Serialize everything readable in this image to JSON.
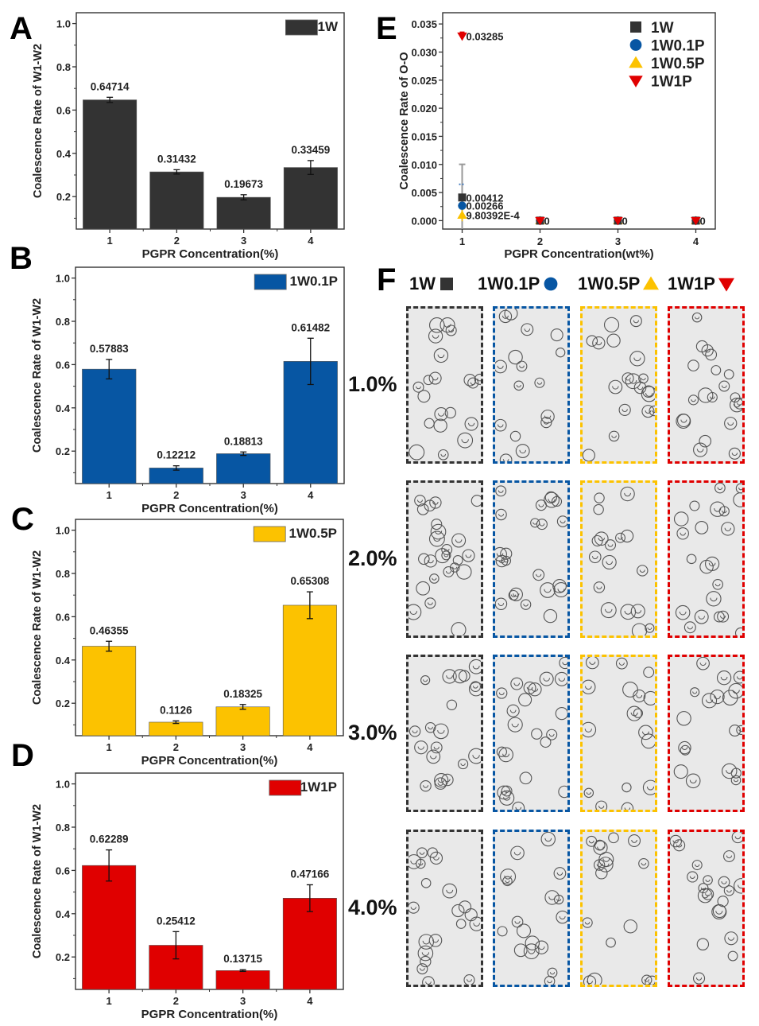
{
  "panels": {
    "A": "A",
    "B": "B",
    "C": "C",
    "D": "D",
    "E": "E",
    "F": "F"
  },
  "colors": {
    "1W": "#333333",
    "1W0.1P": "#0756a3",
    "1W0.5P": "#fcc200",
    "1W1P": "#e00000"
  },
  "chart_data": [
    {
      "id": "A",
      "type": "bar",
      "title": "",
      "xlabel": "PGPR Concentration(%)",
      "ylabel": "Coalescence Rate of W1-W2",
      "categories": [
        "1",
        "2",
        "3",
        "4"
      ],
      "ylim": [
        0.05,
        1.05
      ],
      "yticks": [
        "0.2",
        "0.4",
        "0.6",
        "0.8",
        "1.0"
      ],
      "grid": false,
      "legend": {
        "position": "top-right",
        "entries": [
          "1W"
        ]
      },
      "series": [
        {
          "name": "1W",
          "color": "#333333",
          "values": [
            0.64714,
            0.31432,
            0.19673,
            0.33459
          ],
          "errors": [
            0.012,
            0.01,
            0.012,
            0.032
          ],
          "labels": [
            "0.64714",
            "0.31432",
            "0.19673",
            "0.33459"
          ]
        }
      ]
    },
    {
      "id": "B",
      "type": "bar",
      "title": "",
      "xlabel": "PGPR Concentration(%)",
      "ylabel": "Coalescence Rate of W1-W2",
      "categories": [
        "1",
        "2",
        "3",
        "4"
      ],
      "ylim": [
        0.05,
        1.05
      ],
      "yticks": [
        "0.2",
        "0.4",
        "0.6",
        "0.8",
        "1.0"
      ],
      "grid": false,
      "legend": {
        "position": "top-right",
        "entries": [
          "1W0.1P"
        ]
      },
      "series": [
        {
          "name": "1W0.1P",
          "color": "#0756a3",
          "values": [
            0.57883,
            0.12212,
            0.18813,
            0.61482
          ],
          "errors": [
            0.045,
            0.01,
            0.008,
            0.107
          ],
          "labels": [
            "0.57883",
            "0.12212",
            "0.18813",
            "0.61482"
          ]
        }
      ]
    },
    {
      "id": "C",
      "type": "bar",
      "title": "",
      "xlabel": "PGPR Concentration(%)",
      "ylabel": "Coalescence Rate of W1-W2",
      "categories": [
        "1",
        "2",
        "3",
        "4"
      ],
      "ylim": [
        0.05,
        1.05
      ],
      "yticks": [
        "0.2",
        "0.4",
        "0.6",
        "0.8",
        "1.0"
      ],
      "grid": false,
      "legend": {
        "position": "top-right",
        "entries": [
          "1W0.5P"
        ]
      },
      "series": [
        {
          "name": "1W0.5P",
          "color": "#fcc200",
          "values": [
            0.46355,
            0.1126,
            0.18325,
            0.65308
          ],
          "errors": [
            0.023,
            0.006,
            0.011,
            0.062
          ],
          "labels": [
            "0.46355",
            "0.1126",
            "0.18325",
            "0.65308"
          ]
        }
      ]
    },
    {
      "id": "D",
      "type": "bar",
      "title": "",
      "xlabel": "PGPR Concentration(%)",
      "ylabel": "Coalescence Rate of W1-W2",
      "categories": [
        "1",
        "2",
        "3",
        "4"
      ],
      "ylim": [
        0.05,
        1.05
      ],
      "yticks": [
        "0.2",
        "0.4",
        "0.6",
        "0.8",
        "1.0"
      ],
      "grid": false,
      "legend": {
        "position": "top-right",
        "entries": [
          "1W1P"
        ]
      },
      "series": [
        {
          "name": "1W1P",
          "color": "#e00000",
          "values": [
            0.62289,
            0.25412,
            0.13715,
            0.47166
          ],
          "errors": [
            0.072,
            0.063,
            0.004,
            0.062
          ],
          "labels": [
            "0.62289",
            "0.25412",
            "0.13715",
            "0.47166"
          ]
        }
      ]
    },
    {
      "id": "E",
      "type": "scatter",
      "title": "",
      "xlabel": "PGPR Concentration(wt%)",
      "ylabel": "Coalescence Rate of O-O",
      "x": [
        1,
        2,
        3,
        4
      ],
      "xticks": [
        "1",
        "2",
        "3",
        "4"
      ],
      "xlim": [
        0.75,
        4.25
      ],
      "ylim": [
        -0.0015,
        0.037
      ],
      "yticks": [
        "0.000",
        "0.005",
        "0.010",
        "0.015",
        "0.020",
        "0.025",
        "0.030",
        "0.035"
      ],
      "grid": false,
      "legend": {
        "position": "top-right",
        "entries": [
          "1W",
          "1W0.1P",
          "1W0.5P",
          "1W1P"
        ]
      },
      "series": [
        {
          "name": "1W",
          "marker": "square",
          "color": "#333333",
          "values": [
            0.00412,
            0,
            0,
            0
          ],
          "errors": [
            0.0059,
            0,
            0,
            0
          ],
          "labels": [
            "0.00412",
            "0",
            "0",
            "0"
          ]
        },
        {
          "name": "1W0.1P",
          "marker": "circle",
          "color": "#0756a3",
          "values": [
            0.00266,
            0,
            0,
            0
          ],
          "errors": [
            0.0038,
            0,
            0,
            0
          ],
          "labels": [
            "0.00266",
            "0",
            "0",
            "0"
          ]
        },
        {
          "name": "1W0.5P",
          "marker": "triangle-up",
          "color": "#fcc200",
          "values": [
            0.00098,
            0,
            0,
            0
          ],
          "errors": [
            0.0011,
            0,
            0,
            0
          ],
          "labels": [
            "9.80392E-4",
            "0",
            "0",
            "0"
          ]
        },
        {
          "name": "1W1P",
          "marker": "triangle-down",
          "color": "#e00000",
          "values": [
            0.03285,
            0,
            0,
            0
          ],
          "errors": [
            0.0007,
            0,
            0,
            0
          ],
          "labels": [
            "0.03285",
            "0",
            "0",
            "0"
          ]
        }
      ]
    }
  ],
  "panelF": {
    "columns": [
      {
        "label": "1W",
        "marker": "square",
        "color": "#333333"
      },
      {
        "label": "1W0.1P",
        "marker": "circle",
        "color": "#0756a3"
      },
      {
        "label": "1W0.5P",
        "marker": "triangle-up",
        "color": "#fcc200"
      },
      {
        "label": "1W1P",
        "marker": "triangle-down",
        "color": "#e00000"
      }
    ],
    "rows": [
      "1.0%",
      "2.0%",
      "3.0%",
      "4.0%"
    ]
  }
}
